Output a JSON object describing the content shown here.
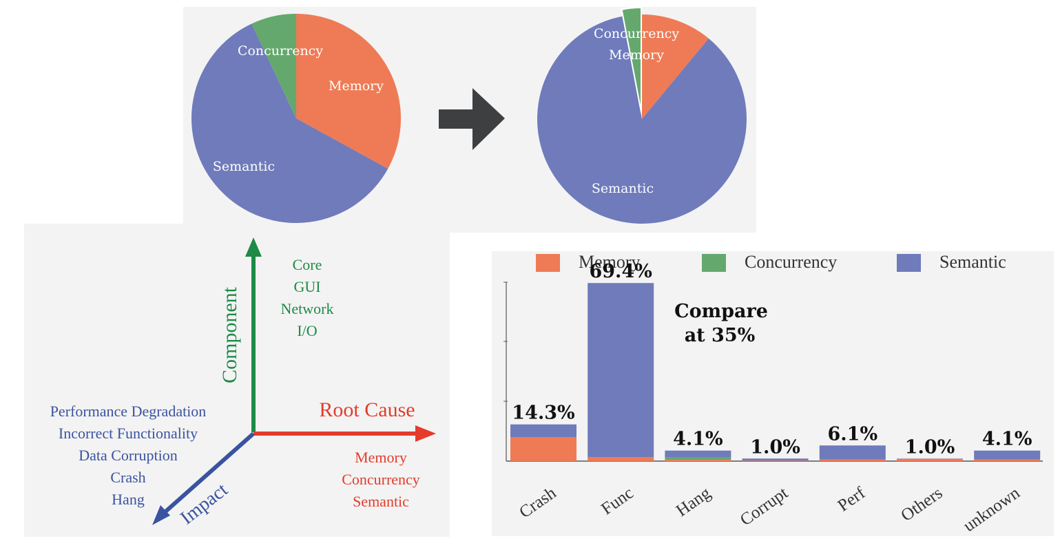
{
  "colors": {
    "memory": "#ee7b55",
    "concurrency": "#64a86e",
    "semantic": "#6f7bbb",
    "arrow": "#3e3f41"
  },
  "pies": [
    {
      "slices": [
        {
          "label": "Memory",
          "value": 33
        },
        {
          "label": "Semantic",
          "value": 60
        },
        {
          "label": "Concurrency",
          "value": 7
        }
      ]
    },
    {
      "slices": [
        {
          "label": "Memory",
          "value": 11
        },
        {
          "label": "Semantic",
          "value": 86
        },
        {
          "label": "Concurrency",
          "value": 3
        }
      ]
    }
  ],
  "dimensions": {
    "component": {
      "label": "Component",
      "items": [
        "Core",
        "GUI",
        "Network",
        "I/O"
      ]
    },
    "root_cause": {
      "label": "Root Cause",
      "items": [
        "Memory",
        "Concurrency",
        "Semantic"
      ]
    },
    "impact": {
      "label": "Impact",
      "items": [
        "Performance Degradation",
        "Incorrect Functionality",
        "Data Corruption",
        "Crash",
        "Hang"
      ]
    }
  },
  "chart_data": {
    "type": "bar",
    "stacked": true,
    "categories": [
      "Crash",
      "Func",
      "Hang",
      "Corrupt",
      "Perf",
      "Others",
      "unknown"
    ],
    "series": [
      {
        "name": "Memory",
        "values": [
          9.3,
          1.6,
          0.5,
          0.2,
          0.6,
          0.9,
          0.6
        ]
      },
      {
        "name": "Concurrency",
        "values": [
          0,
          0,
          1.1,
          0,
          0,
          0,
          0
        ]
      },
      {
        "name": "Semantic",
        "values": [
          5.0,
          67.8,
          2.5,
          0.8,
          5.5,
          0.1,
          3.5
        ]
      }
    ],
    "totals": [
      "14.3%",
      "69.4%",
      "4.1%",
      "1.0%",
      "6.1%",
      "1.0%",
      "4.1%"
    ],
    "annotation": [
      "Compare",
      "at 35%"
    ],
    "legend_position": "top",
    "ylim": [
      0,
      70
    ]
  }
}
